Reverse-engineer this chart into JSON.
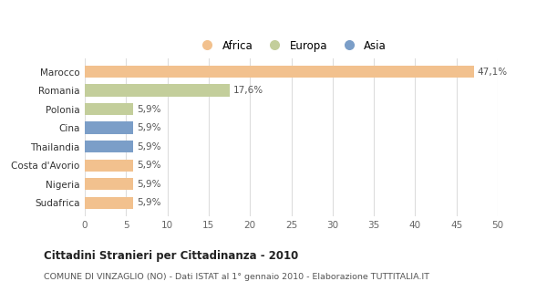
{
  "categories": [
    "Marocco",
    "Romania",
    "Polonia",
    "Cina",
    "Thailandia",
    "Costa d'Avorio",
    "Nigeria",
    "Sudafrica"
  ],
  "values": [
    47.1,
    17.6,
    5.9,
    5.9,
    5.9,
    5.9,
    5.9,
    5.9
  ],
  "labels": [
    "47,1%",
    "17,6%",
    "5,9%",
    "5,9%",
    "5,9%",
    "5,9%",
    "5,9%",
    "5,9%"
  ],
  "colors": [
    "#f2c18e",
    "#c3ce9b",
    "#c3ce9b",
    "#7b9ec8",
    "#7b9ec8",
    "#f2c18e",
    "#f2c18e",
    "#f2c18e"
  ],
  "legend": [
    {
      "label": "Africa",
      "color": "#f2c18e"
    },
    {
      "label": "Europa",
      "color": "#c3ce9b"
    },
    {
      "label": "Asia",
      "color": "#7b9ec8"
    }
  ],
  "xlim": [
    0,
    50
  ],
  "xticks": [
    0,
    5,
    10,
    15,
    20,
    25,
    30,
    35,
    40,
    45,
    50
  ],
  "title_bold": "Cittadini Stranieri per Cittadinanza - 2010",
  "subtitle": "COMUNE DI VINZAGLIO (NO) - Dati ISTAT al 1° gennaio 2010 - Elaborazione TUTTITALIA.IT",
  "bg_color": "#ffffff",
  "grid_color": "#dddddd"
}
